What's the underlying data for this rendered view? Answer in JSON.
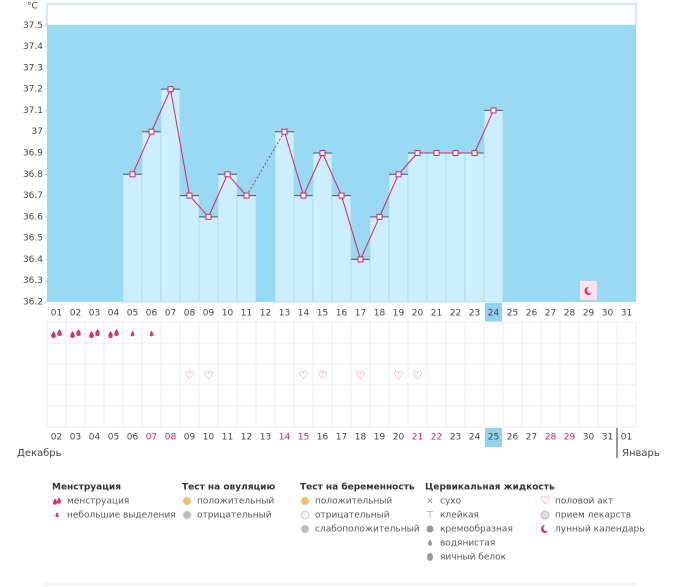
{
  "chart_data": {
    "type": "line",
    "y_unit": "°C",
    "categories": [
      "01",
      "02",
      "03",
      "04",
      "05",
      "06",
      "07",
      "08",
      "09",
      "10",
      "11",
      "12",
      "13",
      "14",
      "15",
      "16",
      "17",
      "18",
      "19",
      "20",
      "21",
      "22",
      "23",
      "24",
      "25",
      "26",
      "27",
      "28",
      "29",
      "30",
      "31"
    ],
    "values": [
      null,
      null,
      null,
      null,
      36.8,
      37.0,
      37.2,
      36.7,
      36.6,
      36.8,
      36.7,
      null,
      37.0,
      36.7,
      36.9,
      36.7,
      36.4,
      36.6,
      36.8,
      36.9,
      36.9,
      36.9,
      36.9,
      37.1,
      null,
      null,
      null,
      null,
      null,
      null,
      null
    ],
    "ylim": [
      36.2,
      37.6
    ],
    "yticks": [
      36.2,
      36.3,
      36.4,
      36.5,
      36.6,
      36.7,
      36.8,
      36.9,
      37,
      37.1,
      37.2,
      37.3,
      37.4,
      37.5
    ],
    "band_color": "#99d9f4",
    "bar_color": "#cdeefc",
    "line_color": "#d9245f",
    "day_flags": [
      null,
      null,
      null,
      null,
      null,
      null,
      null,
      null,
      null,
      null,
      null,
      null,
      null,
      null,
      null,
      null,
      null,
      null,
      null,
      null,
      null,
      null,
      null,
      "today",
      null,
      null,
      null,
      null,
      "moon",
      null,
      null
    ],
    "menstruation": [
      "heavy",
      "heavy",
      "heavy",
      "heavy",
      "light",
      "light",
      null,
      null,
      null,
      null,
      null,
      null,
      null,
      null,
      null,
      null,
      null,
      null,
      null,
      null,
      null,
      null,
      null,
      null,
      null,
      null,
      null,
      null,
      null,
      null,
      null
    ],
    "intercourse": [
      false,
      false,
      false,
      false,
      false,
      false,
      false,
      true,
      true,
      false,
      false,
      false,
      false,
      true,
      true,
      false,
      true,
      false,
      true,
      true,
      false,
      false,
      false,
      false,
      false,
      false,
      false,
      false,
      false,
      false,
      false
    ],
    "cycle_dates": [
      "02",
      "03",
      "04",
      "05",
      "06",
      "07",
      "08",
      "09",
      "10",
      "11",
      "12",
      "13",
      "14",
      "15",
      "16",
      "17",
      "18",
      "19",
      "20",
      "21",
      "22",
      "23",
      "24",
      "25",
      "26",
      "27",
      "28",
      "29",
      "30",
      "31",
      "01"
    ],
    "weekend": [
      false,
      false,
      false,
      false,
      false,
      true,
      true,
      false,
      false,
      false,
      false,
      false,
      true,
      true,
      false,
      false,
      false,
      false,
      false,
      true,
      true,
      false,
      false,
      false,
      false,
      false,
      true,
      true,
      false,
      false,
      false
    ],
    "month_start": "Декабрь",
    "month_end": "Январь"
  },
  "legend": [
    {
      "title": "Менструация",
      "items": [
        {
          "label": "менструация",
          "icon": "heavy"
        },
        {
          "label": "небольшие выделения",
          "icon": "light"
        }
      ]
    },
    {
      "title": "Тест на овуляцию",
      "items": [
        {
          "label": "положительный",
          "icon": "orange"
        },
        {
          "label": "отрицательный",
          "icon": "grey"
        }
      ]
    },
    {
      "title": "Тест на беременность",
      "items": [
        {
          "label": "положительный",
          "icon": "orange"
        },
        {
          "label": "отрицательный",
          "icon": "white"
        },
        {
          "label": "слабоположительный",
          "icon": "grey"
        }
      ]
    },
    {
      "title": "Цервикальная жидкость",
      "items": [
        {
          "label": "сухо",
          "icon": "cross"
        },
        {
          "label": "клейкая",
          "icon": "tee"
        },
        {
          "label": "кремообразная",
          "icon": "cream"
        },
        {
          "label": "водянистая",
          "icon": "dropgrey"
        },
        {
          "label": "яичный белок",
          "icon": "egg"
        }
      ]
    },
    {
      "items": [
        {
          "label": "половой акт",
          "icon": "heart"
        },
        {
          "label": "прием лекарств",
          "icon": "pill"
        },
        {
          "label": "лунный календарь",
          "icon": "moon"
        }
      ]
    }
  ]
}
